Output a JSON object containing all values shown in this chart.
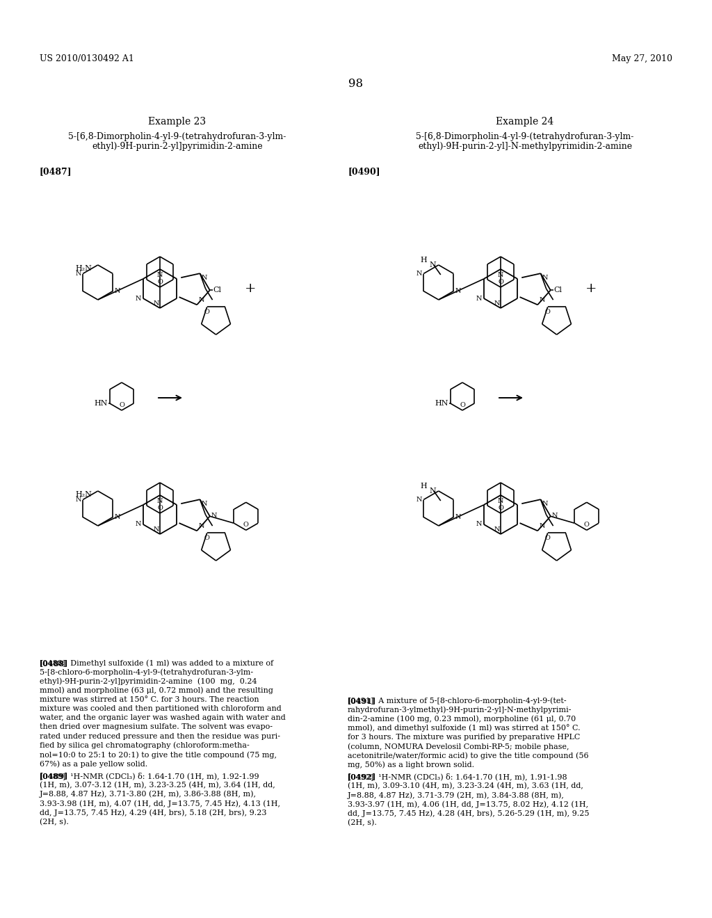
{
  "background_color": "#ffffff",
  "header_left": "US 2010/0130492 A1",
  "header_right": "May 27, 2010",
  "page_number": "98",
  "example23_title": "Example 23",
  "example23_line1": "5-[6,8-Dimorpholin-4-yl-9-(tetrahydrofuran-3-ylm-",
  "example23_line2": "ethyl)-9H-purin-2-yl]pyrimidin-2-amine",
  "example24_title": "Example 24",
  "example24_line1": "5-[6,8-Dimorpholin-4-yl-9-(tetrahydrofuran-3-ylm-",
  "example24_line2": "ethyl)-9H-purin-2-yl]-N-methylpyrimidin-2-amine",
  "label487": "[0487]",
  "label490": "[0490]",
  "p488_lines": [
    "[0488]  Dimethyl sulfoxide (1 ml) was added to a mixture of",
    "5-[8-chloro-6-morpholin-4-yl-9-(tetrahydrofuran-3-ylm-",
    "ethyl)-9H-purin-2-yl]pyrimidin-2-amine  (100  mg,  0.24",
    "mmol) and morpholine (63 μl, 0.72 mmol) and the resulting",
    "mixture was stirred at 150° C. for 3 hours. The reaction",
    "mixture was cooled and then partitioned with chloroform and",
    "water, and the organic layer was washed again with water and",
    "then dried over magnesium sulfate. The solvent was evapo-",
    "rated under reduced pressure and then the residue was puri-",
    "fied by silica gel chromatography (chloroform:metha-",
    "nol=10:0 to 25:1 to 20:1) to give the title compound (75 mg,",
    "67%) as a pale yellow solid."
  ],
  "p489_lines": [
    "[0489]  ¹H-NMR (CDCl₃) δ: 1.64-1.70 (1H, m), 1.92-1.99",
    "(1H, m), 3.07-3.12 (1H, m), 3.23-3.25 (4H, m), 3.64 (1H, dd,",
    "J=8.88, 4.87 Hz), 3.71-3.80 (2H, m), 3.86-3.88 (8H, m),",
    "3.93-3.98 (1H, m), 4.07 (1H, dd, J=13.75, 7.45 Hz), 4.13 (1H,",
    "dd, J=13.75, 7.45 Hz), 4.29 (4H, brs), 5.18 (2H, brs), 9.23",
    "(2H, s)."
  ],
  "p491_lines": [
    "[0491]  A mixture of 5-[8-chloro-6-morpholin-4-yl-9-(tet-",
    "rahydrofuran-3-ylmethyl)-9H-purin-2-yl]-N-methylpyrimi-",
    "din-2-amine (100 mg, 0.23 mmol), morpholine (61 μl, 0.70",
    "mmol), and dimethyl sulfoxide (1 ml) was stirred at 150° C.",
    "for 3 hours. The mixture was purified by preparative HPLC",
    "(column, NOMURA Develosil Combi-RP-5; mobile phase,",
    "acetonitrile/water/formic acid) to give the title compound (56",
    "mg, 50%) as a light brown solid."
  ],
  "p492_lines": [
    "[0492]  ¹H-NMR (CDCl₃) δ: 1.64-1.70 (1H, m), 1.91-1.98",
    "(1H, m), 3.09-3.10 (4H, m), 3.23-3.24 (4H, m), 3.63 (1H, dd,",
    "J=8.88, 4.87 Hz), 3.71-3.79 (2H, m), 3.84-3.88 (8H, m),",
    "3.93-3.97 (1H, m), 4.06 (1H, dd, J=13.75, 8.02 Hz), 4.12 (1H,",
    "dd, J=13.75, 7.45 Hz), 4.28 (4H, brs), 5.26-5.29 (1H, m), 9.25",
    "(2H, s)."
  ]
}
